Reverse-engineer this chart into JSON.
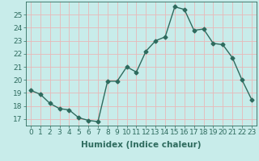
{
  "x": [
    0,
    1,
    2,
    3,
    4,
    5,
    6,
    7,
    8,
    9,
    10,
    11,
    12,
    13,
    14,
    15,
    16,
    17,
    18,
    19,
    20,
    21,
    22,
    23
  ],
  "y": [
    19.2,
    18.9,
    18.2,
    17.8,
    17.7,
    17.1,
    16.9,
    16.8,
    19.9,
    19.9,
    21.0,
    20.6,
    22.2,
    23.0,
    23.3,
    25.6,
    25.4,
    23.8,
    23.9,
    22.8,
    22.7,
    21.7,
    20.0,
    18.5
  ],
  "xlim": [
    -0.5,
    23.5
  ],
  "ylim": [
    16.5,
    26.0
  ],
  "yticks": [
    17,
    18,
    19,
    20,
    21,
    22,
    23,
    24,
    25
  ],
  "xticks": [
    0,
    1,
    2,
    3,
    4,
    5,
    6,
    7,
    8,
    9,
    10,
    11,
    12,
    13,
    14,
    15,
    16,
    17,
    18,
    19,
    20,
    21,
    22,
    23
  ],
  "xlabel": "Humidex (Indice chaleur)",
  "line_color": "#2e6b5e",
  "marker": "D",
  "marker_size": 2.5,
  "bg_color": "#c8ecea",
  "grid_color": "#e8b8b8",
  "tick_color": "#2e6b5e",
  "label_color": "#2e6b5e",
  "xlabel_fontsize": 7.5,
  "tick_fontsize": 6.5
}
